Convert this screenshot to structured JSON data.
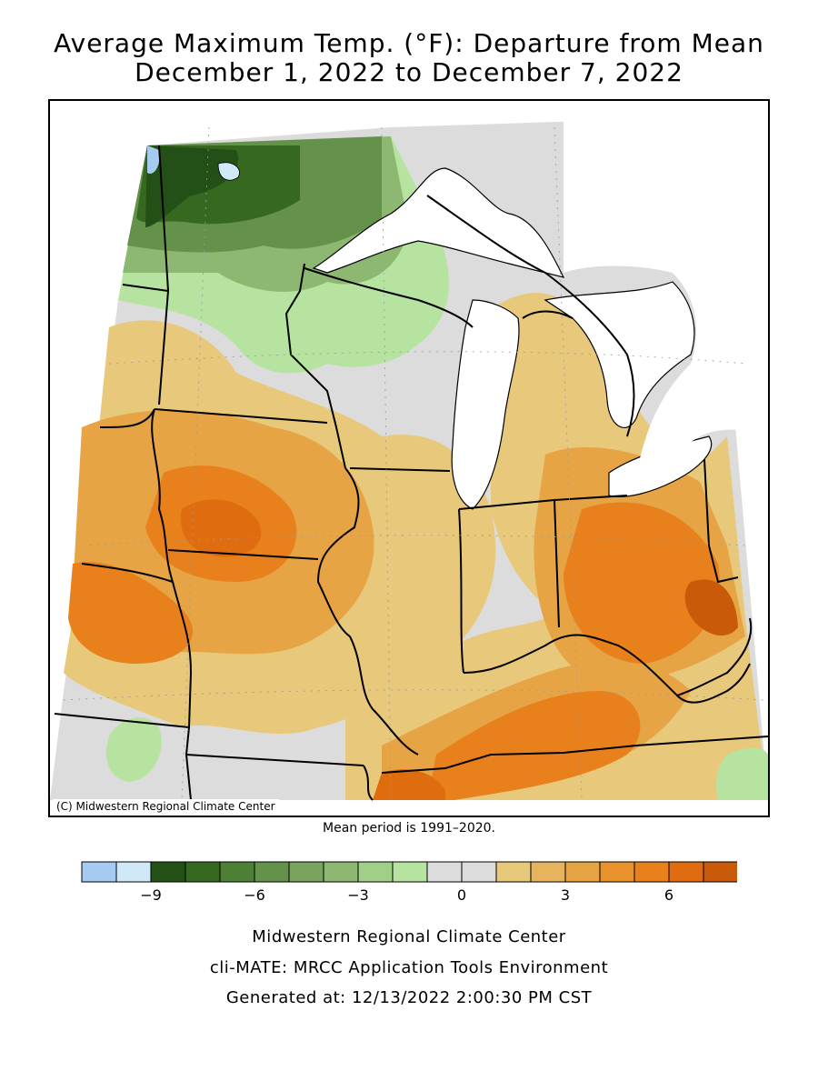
{
  "title": {
    "line1": "Average Maximum Temp. (°F): Departure from Mean",
    "line2": "December 1, 2022 to December 7, 2022"
  },
  "map": {
    "copyright": "(C) Midwestern Regional Climate Center",
    "mean_period": "Mean period is 1991–2020.",
    "water_color": "#ffffff",
    "border_color": "#000000"
  },
  "legend": {
    "colors": [
      "#a6cbf3",
      "#cfe9f9",
      "#235016",
      "#36691f",
      "#4d7f34",
      "#64924a",
      "#78a45d",
      "#8cb871",
      "#a2cf88",
      "#b6e3a0",
      "#dcdcdc",
      "#dcdcdc",
      "#e8c87a",
      "#e6b45e",
      "#e6a444",
      "#e8922d",
      "#e8801c",
      "#e06c10",
      "#c85a0a"
    ],
    "ticks": [
      {
        "value": -9,
        "label": "−9"
      },
      {
        "value": -6,
        "label": "−6"
      },
      {
        "value": -3,
        "label": "−3"
      },
      {
        "value": 0,
        "label": "0"
      },
      {
        "value": 3,
        "label": "3"
      },
      {
        "value": 6,
        "label": "6"
      }
    ]
  },
  "footer": {
    "line1": "Midwestern Regional Climate Center",
    "line2": "cli-MATE: MRCC Application Tools Environment",
    "line3": "Generated at: 12/13/2022 2:00:30 PM CST"
  }
}
